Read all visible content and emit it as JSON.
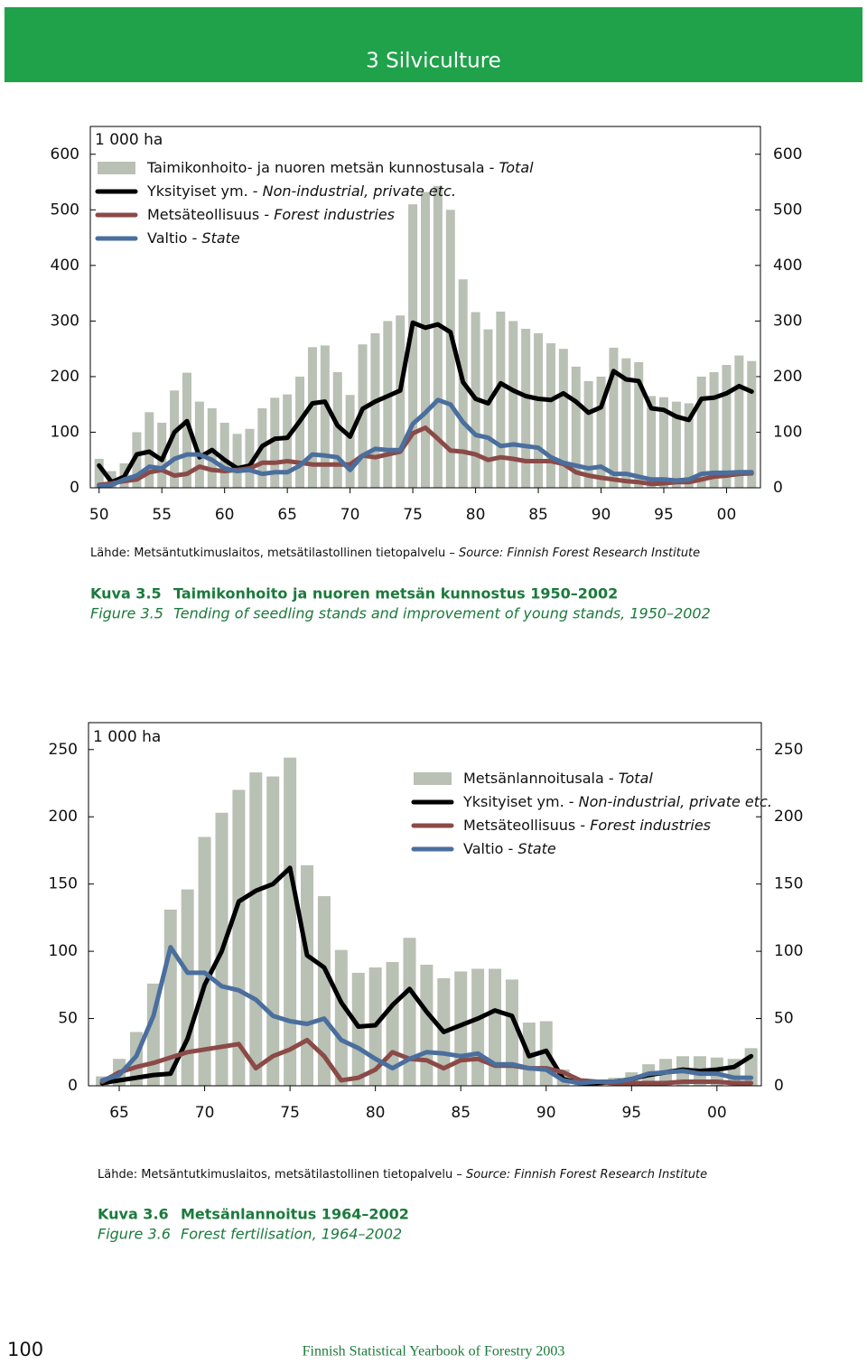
{
  "header": {
    "title": "3 Silviculture"
  },
  "footer": {
    "page": "100",
    "title": "Finnish Statistical Yearbook of Forestry 2003"
  },
  "chart_data": [
    {
      "type": "combo",
      "unit": "1 000 ha",
      "legend": "top-left",
      "x": [
        1950,
        1951,
        1952,
        1953,
        1954,
        1955,
        1956,
        1957,
        1958,
        1959,
        1960,
        1961,
        1962,
        1963,
        1964,
        1965,
        1966,
        1967,
        1968,
        1969,
        1970,
        1971,
        1972,
        1973,
        1974,
        1975,
        1976,
        1977,
        1978,
        1979,
        1980,
        1981,
        1982,
        1983,
        1984,
        1985,
        1986,
        1987,
        1988,
        1989,
        1990,
        1991,
        1992,
        1993,
        1994,
        1995,
        1996,
        1997,
        1998,
        1999,
        2000,
        2001,
        2002
      ],
      "xlim": [
        1949.3,
        2002.7
      ],
      "xticks": [
        {
          "value": 1950,
          "label": "50"
        },
        {
          "value": 1955,
          "label": "55"
        },
        {
          "value": 1960,
          "label": "60"
        },
        {
          "value": 1965,
          "label": "65"
        },
        {
          "value": 1970,
          "label": "70"
        },
        {
          "value": 1975,
          "label": "75"
        },
        {
          "value": 1980,
          "label": "80"
        },
        {
          "value": 1985,
          "label": "85"
        },
        {
          "value": 1990,
          "label": "90"
        },
        {
          "value": 1995,
          "label": "95"
        },
        {
          "value": 2000,
          "label": "00"
        }
      ],
      "ylim": [
        0,
        650
      ],
      "yticks": [
        0,
        100,
        200,
        300,
        400,
        500,
        600
      ],
      "series": [
        {
          "name": "Taimikonhoito- ja nuoren metsän kunnostusala - Total",
          "type": "bar",
          "color": "#b9c0b4",
          "values": [
            52,
            30,
            44,
            100,
            136,
            117,
            175,
            207,
            155,
            143,
            117,
            97,
            106,
            143,
            162,
            168,
            200,
            253,
            256,
            208,
            167,
            258,
            278,
            300,
            310,
            510,
            532,
            543,
            500,
            375,
            316,
            285,
            317,
            300,
            286,
            278,
            260,
            250,
            218,
            192,
            200,
            252,
            233,
            226,
            165,
            163,
            155,
            152,
            200,
            208,
            221,
            238,
            228
          ]
        },
        {
          "name": "Yksityiset ym. - Non-industrial, private etc.",
          "type": "line",
          "color": "#000000",
          "values": [
            40,
            10,
            20,
            60,
            65,
            50,
            100,
            120,
            55,
            68,
            50,
            35,
            40,
            75,
            88,
            90,
            120,
            152,
            155,
            112,
            92,
            142,
            155,
            165,
            175,
            297,
            288,
            294,
            280,
            190,
            160,
            152,
            188,
            175,
            165,
            160,
            158,
            170,
            155,
            135,
            145,
            210,
            195,
            192,
            143,
            140,
            128,
            122,
            160,
            162,
            170,
            183,
            173
          ]
        },
        {
          "name": "Metsäteollisuus - Forest industries",
          "type": "line",
          "color": "#8b4a47",
          "values": [
            5,
            8,
            12,
            15,
            28,
            32,
            22,
            25,
            38,
            32,
            30,
            32,
            35,
            45,
            45,
            48,
            45,
            42,
            42,
            42,
            42,
            58,
            55,
            60,
            65,
            98,
            108,
            88,
            67,
            65,
            60,
            50,
            55,
            52,
            48,
            48,
            48,
            43,
            28,
            22,
            18,
            15,
            12,
            10,
            7,
            8,
            10,
            10,
            15,
            20,
            22,
            25,
            26
          ]
        },
        {
          "name": "Valtio - State",
          "type": "line",
          "color": "#4a6f9e",
          "values": [
            3,
            5,
            15,
            22,
            38,
            35,
            52,
            60,
            60,
            50,
            35,
            30,
            32,
            25,
            28,
            28,
            40,
            60,
            58,
            55,
            32,
            58,
            70,
            68,
            68,
            115,
            135,
            158,
            150,
            118,
            95,
            90,
            75,
            78,
            75,
            72,
            55,
            45,
            40,
            35,
            38,
            25,
            25,
            20,
            15,
            15,
            13,
            15,
            25,
            27,
            27,
            28,
            28
          ]
        }
      ],
      "source": {
        "fi": "Lähde: Metsäntutkimuslaitos, metsätilastollinen tietopalvelu – ",
        "en": "Source: Finnish Forest Research Institute"
      },
      "caption": {
        "fi_label": "Kuva 3.5",
        "fi_title": "Taimikonhoito ja nuoren metsän kunnostus 1950–2002",
        "en_label": "Figure 3.5",
        "en_title": "Tending of seedling stands and improvement of young stands, 1950–2002"
      }
    },
    {
      "type": "combo",
      "unit": "1 000 ha",
      "legend": "top-right",
      "x": [
        1964,
        1965,
        1966,
        1967,
        1968,
        1969,
        1970,
        1971,
        1972,
        1973,
        1974,
        1975,
        1976,
        1977,
        1978,
        1979,
        1980,
        1981,
        1982,
        1983,
        1984,
        1985,
        1986,
        1987,
        1988,
        1989,
        1990,
        1991,
        1992,
        1993,
        1994,
        1995,
        1996,
        1997,
        1998,
        1999,
        2000,
        2001,
        2002
      ],
      "xlim": [
        1963.2,
        2002.6
      ],
      "xticks": [
        {
          "value": 1965,
          "label": "65"
        },
        {
          "value": 1970,
          "label": "70"
        },
        {
          "value": 1975,
          "label": "75"
        },
        {
          "value": 1980,
          "label": "80"
        },
        {
          "value": 1985,
          "label": "85"
        },
        {
          "value": 1990,
          "label": "90"
        },
        {
          "value": 1995,
          "label": "95"
        },
        {
          "value": 2000,
          "label": "00"
        }
      ],
      "ylim": [
        0,
        270
      ],
      "yticks": [
        0,
        50,
        100,
        150,
        200,
        250
      ],
      "series": [
        {
          "name": "Metsänlannoitusala - Total",
          "type": "bar",
          "color": "#b9c0b4",
          "values": [
            7,
            20,
            40,
            76,
            131,
            146,
            185,
            203,
            220,
            233,
            230,
            244,
            164,
            141,
            101,
            84,
            88,
            92,
            110,
            90,
            80,
            85,
            87,
            87,
            79,
            47,
            48,
            12,
            4,
            3,
            6,
            10,
            16,
            20,
            22,
            22,
            21,
            20,
            28
          ]
        },
        {
          "name": "Yksityiset ym. - Non-industrial, private etc.",
          "type": "line",
          "color": "#000000",
          "values": [
            2,
            4,
            6,
            8,
            9,
            35,
            75,
            100,
            137,
            145,
            150,
            162,
            97,
            88,
            62,
            44,
            45,
            60,
            72,
            55,
            40,
            45,
            50,
            56,
            52,
            22,
            26,
            5,
            2,
            2,
            3,
            5,
            8,
            10,
            12,
            11,
            12,
            14,
            22
          ]
        },
        {
          "name": "Metsäteollisuus - Forest industries",
          "type": "line",
          "color": "#8b4a47",
          "values": [
            3,
            10,
            14,
            17,
            21,
            25,
            27,
            29,
            31,
            13,
            22,
            27,
            34,
            22,
            4,
            6,
            12,
            25,
            20,
            19,
            13,
            19,
            20,
            15,
            15,
            13,
            13,
            10,
            4,
            3,
            2,
            2,
            2,
            2,
            3,
            3,
            3,
            2,
            2
          ]
        },
        {
          "name": "Valtio - State",
          "type": "line",
          "color": "#4a6f9e",
          "values": [
            4,
            8,
            22,
            52,
            103,
            84,
            84,
            74,
            71,
            64,
            52,
            48,
            46,
            50,
            34,
            28,
            20,
            13,
            20,
            25,
            24,
            22,
            24,
            16,
            16,
            13,
            12,
            4,
            2,
            3,
            3,
            5,
            9,
            10,
            11,
            9,
            9,
            6,
            6
          ]
        }
      ],
      "source": {
        "fi": "Lähde: Metsäntutkimuslaitos, metsätilastollinen tietopalvelu – ",
        "en": "Source: Finnish Forest Research Institute"
      },
      "caption": {
        "fi_label": "Kuva 3.6",
        "fi_title": "Metsänlannoitus 1964–2002",
        "en_label": "Figure 3.6",
        "en_title": "Forest fertilisation, 1964–2002"
      }
    }
  ]
}
